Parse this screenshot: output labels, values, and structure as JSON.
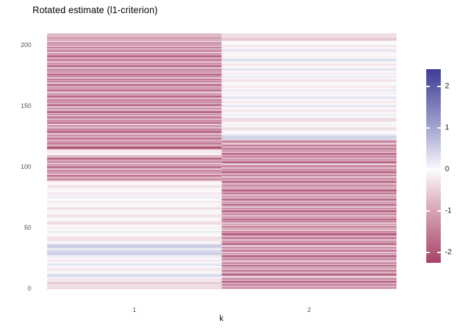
{
  "title": "Rotated estimate (l1-criterion)",
  "chart_data": {
    "type": "heatmap",
    "title": "Rotated estimate (l1-criterion)",
    "xlabel": "k",
    "ylabel": "",
    "categories": [
      "1",
      "2"
    ],
    "y_ticks": [
      0,
      50,
      100,
      150,
      200
    ],
    "ylim": [
      0,
      210
    ],
    "grid": "off",
    "legend": {
      "position": "right",
      "ticks": [
        2,
        1,
        0,
        -1,
        -2
      ],
      "domain_top": 2.42,
      "domain_bottom": -2.25
    },
    "colors": {
      "low": "#A33761",
      "mid": "#FFFFFF",
      "high": "#3F3F99",
      "max_abs": 2.4,
      "gamma": 0.9
    },
    "series": [
      {
        "name": "k=1",
        "values": [
          -0.5,
          -0.25,
          -0.45,
          -0.1,
          -0.65,
          -0.55,
          -0.3,
          -0.15,
          -0.35,
          0.05,
          0.3,
          0.45,
          0.25,
          0.05,
          -0.1,
          0.1,
          -0.3,
          -0.2,
          0,
          0.15,
          0.35,
          0.1,
          -0.05,
          -0.25,
          -0.1,
          0.05,
          0.2,
          0.1,
          0.45,
          0.6,
          0.4,
          0.5,
          0.2,
          0.1,
          0.55,
          0.65,
          0.45,
          0.2,
          0.05,
          -0.15,
          -0.35,
          -0.2,
          -0.4,
          -0.15,
          0,
          -0.1,
          0.1,
          0.25,
          0.05,
          -0.05,
          -0.2,
          -0.1,
          0,
          -0.3,
          -0.45,
          -0.25,
          -0.1,
          0,
          0.1,
          -0.2,
          -0.35,
          -0.15,
          0.05,
          0.15,
          0,
          -0.25,
          -0.4,
          -0.2,
          -0.05,
          0.1,
          0,
          -0.3,
          -0.15,
          -0.05,
          0.05,
          0.2,
          0.1,
          -0.1,
          -0.25,
          -0.15,
          0,
          0.1,
          -0.05,
          -0.2,
          -0.35,
          -0.15,
          -0.05,
          0.05,
          -0.1,
          -0.9,
          -1.6,
          -0.5,
          -1.2,
          -2,
          -0.3,
          -1.5,
          -0.8,
          -1.9,
          -0.4,
          -1.1,
          -2.2,
          -0.6,
          -1.4,
          -0.2,
          -1.8,
          -0.7,
          -1.3,
          -2.1,
          -0.5,
          -1,
          -0.15,
          -0.05,
          -0.3,
          -0.1,
          -0.2,
          -1.7,
          -2.3,
          -1.2,
          -0.6,
          -1.9,
          -0.9,
          -1.5,
          -0.4,
          -2,
          -1.1,
          -0.7,
          -1.6,
          -0.3,
          -1.3,
          -2.2,
          -0.8,
          -1.8,
          -0.5,
          -1,
          -1.4,
          -0.2,
          -2.1,
          -0.9,
          -1.6,
          -0.6,
          -1.2,
          -1.9,
          -0.35,
          -1.5,
          -0.8,
          -2.3,
          -1.1,
          -0.45,
          -1.7,
          -0.25,
          -1.3,
          -2,
          -0.7,
          -1.45,
          -0.95,
          -1.8,
          -0.5,
          -1.15,
          -2.2,
          -0.65,
          -1.55,
          -0.3,
          -1.05,
          -1.9,
          -0.85,
          -1.35,
          -0.55,
          -2.1,
          -1.25,
          -0.4,
          -1.65,
          -0.75,
          -1.95,
          -0.2,
          -1.5,
          -1,
          -2.25,
          -0.6,
          -1.4,
          -0.9,
          -1.75,
          -0.35,
          -1.2,
          -2.05,
          -0.7,
          -1.6,
          -0.45,
          -1.1,
          -1.85,
          -0.55,
          -1.3,
          -2.15,
          -0.8,
          -1.5,
          -0.25,
          -1.7,
          -1.05,
          -0.6,
          -1.95,
          -0.4,
          -1.35,
          -0.85,
          -1.6,
          -0.3,
          -1.15,
          -0.7,
          -1.45,
          -0.5,
          -0.95,
          -0.6
        ]
      },
      {
        "name": "k=2",
        "values": [
          -0.8,
          -1.5,
          -0.4,
          -1.9,
          -0.7,
          -1.2,
          -2.1,
          -0.5,
          -1.6,
          -0.9,
          -0.2,
          -1.4,
          -2.2,
          -0.6,
          -1.1,
          -1.8,
          -0.35,
          -1.3,
          -0.75,
          -2,
          -0.5,
          -1.55,
          -1,
          -0.25,
          -1.7,
          -0.85,
          -1.35,
          -2.15,
          -0.6,
          -1.45,
          -0.3,
          -1.9,
          -1.05,
          -0.7,
          -1.6,
          -0.15,
          -1.25,
          -2.05,
          -0.8,
          -1.5,
          -0.45,
          -1.15,
          -1.85,
          -0.55,
          -1.4,
          -2.3,
          -0.9,
          -1.65,
          -0.35,
          -1.2,
          -0.65,
          -1.95,
          -0.5,
          -1.3,
          -0.2,
          -1.75,
          -1,
          -2.1,
          -0.7,
          -1.45,
          -0.4,
          -1.55,
          -0.85,
          -1.25,
          -2.2,
          -0.6,
          -1.7,
          -0.3,
          -1.1,
          -1.9,
          -0.75,
          -1.35,
          -0.5,
          -2,
          -1.2,
          -0.65,
          -1.5,
          -0.25,
          -1.8,
          -0.95,
          -1.4,
          -2.25,
          -0.55,
          -1.15,
          -0.8,
          -1.6,
          -0.4,
          -1.3,
          -2.1,
          -0.7,
          -1.5,
          -1,
          -0.3,
          -1.85,
          -0.6,
          -1.35,
          -2,
          -0.85,
          -1.55,
          -0.45,
          -1.2,
          -1.75,
          -0.2,
          -1.05,
          -2.2,
          -0.75,
          -1.45,
          -0.5,
          -1.65,
          -0.9,
          -1.3,
          -2.05,
          -0.35,
          -1.5,
          -0.8,
          -1.9,
          -0.55,
          -1.25,
          -1.6,
          -0.3,
          -1,
          -1.7,
          -0.6,
          0.35,
          0.5,
          0.45,
          0.3,
          0.1,
          -0.05,
          0.05,
          -0.15,
          -0.4,
          -0.3,
          -0.1,
          0.05,
          0.15,
          0,
          -0.2,
          -0.35,
          -0.45,
          -0.25,
          -0.05,
          0.1,
          0.2,
          0.05,
          -0.1,
          -0.3,
          -0.2,
          0,
          0.15,
          0.3,
          0.1,
          -0.05,
          -0.25,
          -0.15,
          0.05,
          0.2,
          0.35,
          0.15,
          0,
          -0.2,
          -0.1,
          0.1,
          0.25,
          0.05,
          -0.15,
          -0.3,
          -0.05,
          0.1,
          0,
          -0.2,
          -0.35,
          -0.15,
          0.05,
          0.2,
          0.1,
          -0.1,
          -0.25,
          0,
          0.15,
          0.35,
          0.2,
          0,
          -0.15,
          -0.3,
          -0.1,
          0.05,
          0.25,
          0.4,
          0.15,
          -0.05,
          -0.2,
          0,
          0.1,
          -0.1,
          -0.25,
          0.3,
          0.1,
          -0.05,
          -0.35,
          -0.15,
          0.05,
          0,
          -0.1,
          -0.5,
          -0.65,
          -0.45,
          -0.25,
          -0.4,
          -0.3
        ]
      }
    ]
  }
}
